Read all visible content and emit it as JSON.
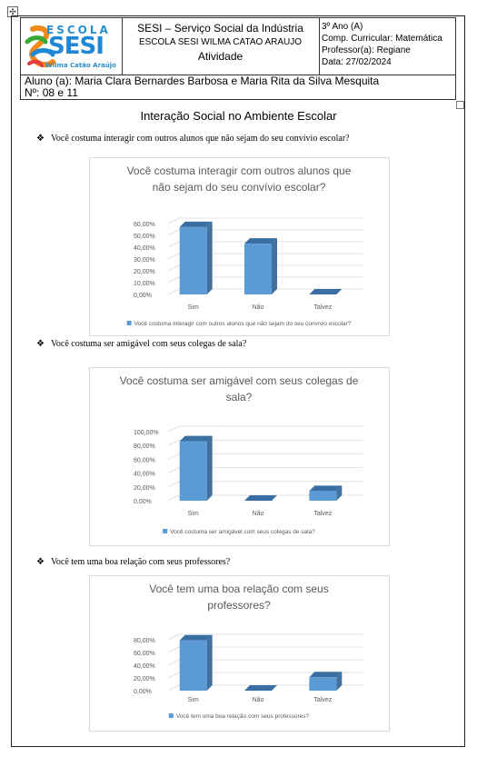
{
  "header": {
    "logo": {
      "escola": "ESCOLA",
      "sesi": "SESI",
      "subtitle": "Wilma Catão Araújo"
    },
    "institution": "SESI – Serviço Social da Indústria",
    "school": "ESCOLA SESI WILMA CATAO ARAUJO",
    "doc_type": "Atividade",
    "grade": "3º Ano (A)",
    "subject": "Comp. Curricular: Matemática",
    "teacher": "Professor(a): Regiane",
    "date": "Data: 27/02/2024",
    "students": "Aluno (a): Maria Clara Bernardes Barbosa e Maria Rita da Silva Mesquita",
    "numbers": "Nº: 08 e 11"
  },
  "title": "Interação Social no Ambiente Escolar",
  "questions": [
    "Você costuma interagir com outros alunos que não sejam do seu convívio escolar?",
    "Você costuma ser amigável com seus colegas de sala?",
    "Você tem uma boa relação com seus professores?"
  ],
  "colors": {
    "bar_front": "#5b9bd5",
    "bar_side": "#41719c",
    "bar_top": "#3a6fa3",
    "grid": "#e0e0e0",
    "text": "#595959"
  },
  "chart_data": [
    {
      "type": "bar",
      "title_lines": [
        "Você costuma interagir com outros alunos que",
        "não sejam do seu convívio escolar?"
      ],
      "categories": [
        "Sim",
        "Não",
        "Talvez"
      ],
      "values": [
        0.57,
        0.43,
        0.0
      ],
      "yticks": [
        "0,00%",
        "10,00%",
        "20,00%",
        "30,00%",
        "40,00%",
        "50,00%",
        "60,00%"
      ],
      "ylim": [
        0,
        0.6
      ],
      "legend": "Você costuma interagir com outros alunos que não sejam do seu convívio escolar?"
    },
    {
      "type": "bar",
      "title_lines": [
        "Você costuma ser amigável com seus colegas de",
        "sala?"
      ],
      "categories": [
        "Sim",
        "Não",
        "Talvez"
      ],
      "values": [
        0.86,
        0.0,
        0.14
      ],
      "yticks": [
        "0,00%",
        "20,00%",
        "40,00%",
        "60,00%",
        "80,00%",
        "100,00%"
      ],
      "ylim": [
        0,
        1.0
      ],
      "legend": "Você costuma ser amigável com seus colegas de sala?"
    },
    {
      "type": "bar",
      "title_lines": [
        "Você tem uma boa relação com seus",
        "professores?"
      ],
      "categories": [
        "Sim",
        "Não",
        "Talvez"
      ],
      "values": [
        0.79,
        0.0,
        0.21
      ],
      "yticks": [
        "0,00%",
        "20,00%",
        "40,00%",
        "60,00%",
        "80,00%"
      ],
      "ylim": [
        0,
        0.8
      ],
      "legend": "Você tem uma boa relação com seus professores?"
    }
  ]
}
